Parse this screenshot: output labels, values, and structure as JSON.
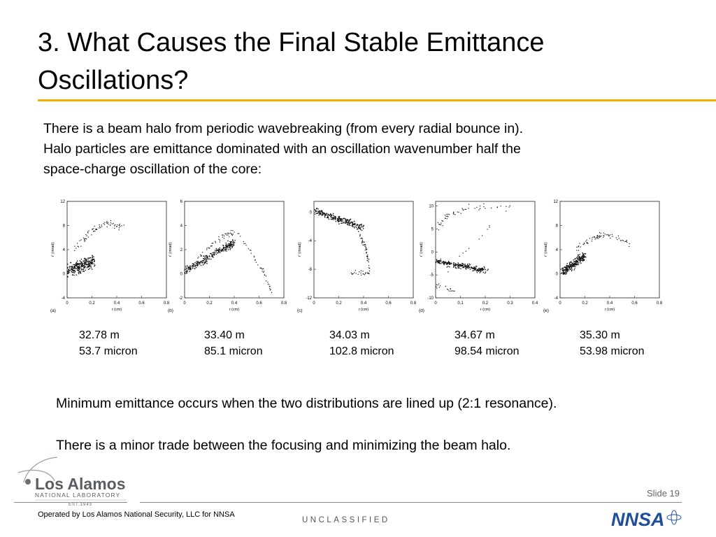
{
  "slide": {
    "title": "3. What Causes the Final Stable Emittance Oscillations?",
    "intro_line1": "There is a beam halo from periodic wavebreaking (from every radial bounce in).",
    "intro_line2": "Halo particles are emittance dominated with an oscillation wavenumber half the",
    "intro_line3": "space-charge oscillation of the core:",
    "note1": "Minimum emittance occurs when the two distributions are lined up (2:1 resonance).",
    "note2": "There is a minor trade between the focusing and minimizing the beam halo.",
    "slide_label": "Slide 19"
  },
  "plots": [
    {
      "panel": "(a)",
      "xlabel": "r (cm)",
      "ylabel": "r' (mrad)",
      "xticks": [
        "0",
        "0.2",
        "0.4",
        "0.6",
        "0.8"
      ],
      "yticks": [
        "12",
        "8",
        "4",
        "0",
        "-4"
      ],
      "xlim": [
        0,
        0.8
      ],
      "ylim": [
        -4,
        12
      ]
    },
    {
      "panel": "(b)",
      "xlabel": "r (cm)",
      "ylabel": "r' (mrad)",
      "xticks": [
        "0",
        "0.2",
        "0.4",
        "0.6",
        "0.8"
      ],
      "yticks": [
        "6",
        "4",
        "2",
        "0",
        "-2"
      ],
      "xlim": [
        0,
        0.8
      ],
      "ylim": [
        -2,
        6
      ]
    },
    {
      "panel": "(c)",
      "xlabel": "r (cm)",
      "ylabel": "r' (mrad)",
      "xticks": [
        "0",
        "0.2",
        "0.4",
        "0.6",
        "0.8"
      ],
      "yticks": [
        "0",
        "-4",
        "-8",
        "-12"
      ],
      "xlim": [
        0,
        0.8
      ],
      "ylim": [
        -12,
        1.5
      ]
    },
    {
      "panel": "(d)",
      "xlabel": "r (cm)",
      "ylabel": "r' (mrad)",
      "xticks": [
        "0",
        "0.1",
        "0.2",
        "0.3",
        "0.4"
      ],
      "yticks": [
        "10",
        "5",
        "0",
        "-5",
        "-10"
      ],
      "xlim": [
        0,
        0.4
      ],
      "ylim": [
        -10,
        11
      ]
    },
    {
      "panel": "(e)",
      "xlabel": "r (cm)",
      "ylabel": "r' (mrad)",
      "xticks": [
        "0",
        "0.2",
        "0.4",
        "0.6",
        "0.8"
      ],
      "yticks": [
        "12",
        "8",
        "4",
        "0",
        "-4"
      ],
      "xlim": [
        0,
        0.8
      ],
      "ylim": [
        -4,
        12
      ]
    }
  ],
  "captions": [
    {
      "distance": "32.78 m",
      "emittance": "53.7 micron"
    },
    {
      "distance": "33.40 m",
      "emittance": "85.1 micron"
    },
    {
      "distance": "34.03 m",
      "emittance": "102.8 micron"
    },
    {
      "distance": "34.67 m",
      "emittance": "98.54 micron"
    },
    {
      "distance": "35.30 m",
      "emittance": "53.98 micron"
    }
  ],
  "footer": {
    "logo_name": "Los Alamos",
    "logo_sub": "NATIONAL LABORATORY",
    "logo_est": "EST.1943",
    "operated": "Operated by Los Alamos National Security, LLC for NNSA",
    "classification": "UNCLASSIFIED",
    "nnsa": "NNSA"
  },
  "colors": {
    "accent": "#f4b000",
    "text": "#000000",
    "nnsa_blue": "#1f4e9c"
  }
}
